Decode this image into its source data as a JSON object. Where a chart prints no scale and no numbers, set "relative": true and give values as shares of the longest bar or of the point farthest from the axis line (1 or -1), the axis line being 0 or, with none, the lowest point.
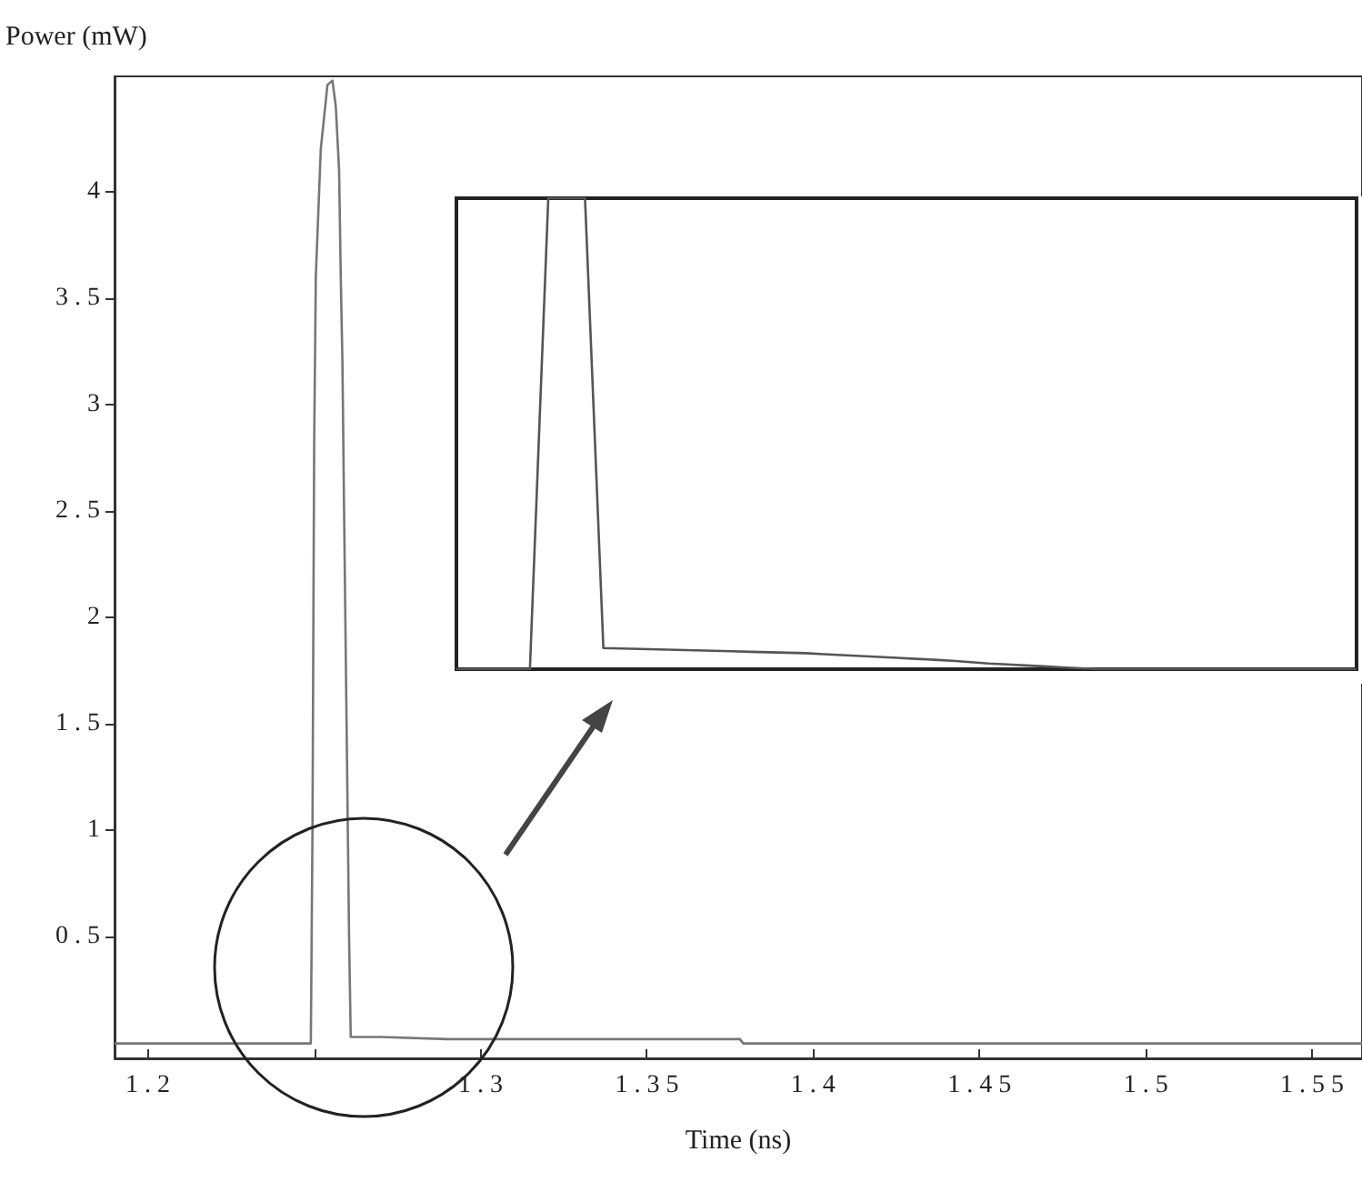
{
  "chart_data": [
    {
      "type": "line",
      "xlabel": "Time (ns)",
      "ylabel": "Power (mW)",
      "marker": "none",
      "x": [
        1.19,
        1.249,
        1.2495,
        1.25,
        1.2505,
        1.252,
        1.254,
        1.2555,
        1.2565,
        1.2575,
        1.258,
        1.2585,
        1.259,
        1.2605,
        1.261,
        1.27,
        1.29,
        1.378,
        1.379,
        1.565
      ],
      "series": [
        {
          "color": "#777777",
          "values": [
            0,
            0,
            1.0,
            2.8,
            3.6,
            4.2,
            4.5,
            4.52,
            4.4,
            4.1,
            3.6,
            3.2,
            2.5,
            0.5,
            0.03,
            0.03,
            0.02,
            0.02,
            0,
            0
          ]
        }
      ],
      "xlim": [
        1.19,
        1.565
      ],
      "ylim": [
        -0.07,
        4.54
      ],
      "xticks": [
        1.2,
        {
          "value": 1.25,
          "label": null
        },
        1.3,
        1.35,
        1.4,
        1.45,
        1.5,
        1.55
      ],
      "yticks": [
        0.5,
        1,
        1.5,
        2,
        2.5,
        3,
        3.5,
        4
      ]
    },
    {
      "type": "line",
      "relative": true,
      "marker": "none",
      "categories": [
        null,
        null,
        null,
        null,
        null,
        null,
        null,
        null,
        null,
        null,
        null,
        null,
        null,
        null,
        null,
        null,
        null,
        null,
        null,
        null,
        null,
        null,
        null,
        null,
        null,
        null,
        null,
        null,
        null,
        null,
        null,
        null,
        null,
        null,
        null,
        null,
        null,
        null,
        null,
        null,
        null,
        null,
        null,
        null,
        null,
        null,
        null,
        null,
        null,
        null
      ],
      "series": [
        {
          "color": "#555555",
          "values": [
            0,
            0,
            0,
            0,
            0,
            1,
            1,
            1,
            0.045,
            0.044,
            0.043,
            0.042,
            0.041,
            0.04,
            0.039,
            0.038,
            0.037,
            0.036,
            0.035,
            0.034,
            0.032,
            0.03,
            0.028,
            0.026,
            0.024,
            0.022,
            0.02,
            0.018,
            0.015,
            0.012,
            0.01,
            0.008,
            0.006,
            0.004,
            0.002,
            0,
            0,
            0,
            0,
            0,
            0,
            0,
            0,
            0,
            0,
            0,
            0,
            0,
            0,
            0
          ]
        }
      ]
    }
  ]
}
